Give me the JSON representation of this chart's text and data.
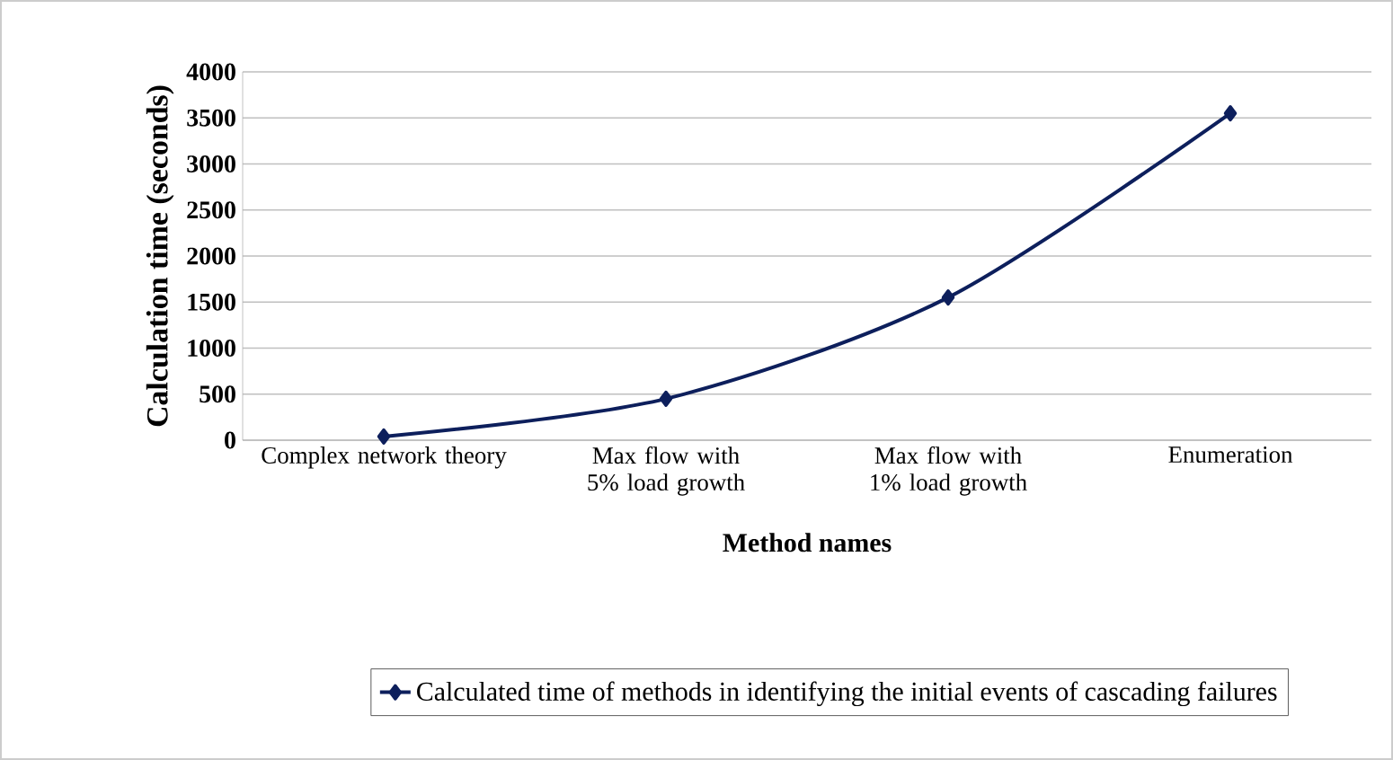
{
  "chart_data": {
    "type": "line",
    "xlabel": "Method names",
    "ylabel": "Calculation time (seconds)",
    "categories": [
      "Complex network theory",
      "Max flow with 5% load growth",
      "Max flow with 1% load growth",
      "Enumeration"
    ],
    "series": [
      {
        "name": "Calculated time of methods in  identifying  the initial events of cascading failures",
        "color": "#0d1f5c",
        "values": [
          40,
          450,
          1550,
          3550
        ]
      }
    ],
    "ylim": [
      0,
      4000
    ],
    "yticks": [
      0,
      500,
      1000,
      1500,
      2000,
      2500,
      3000,
      3500,
      4000
    ],
    "grid": "y",
    "legend": "bottom",
    "marker": "diamond"
  }
}
